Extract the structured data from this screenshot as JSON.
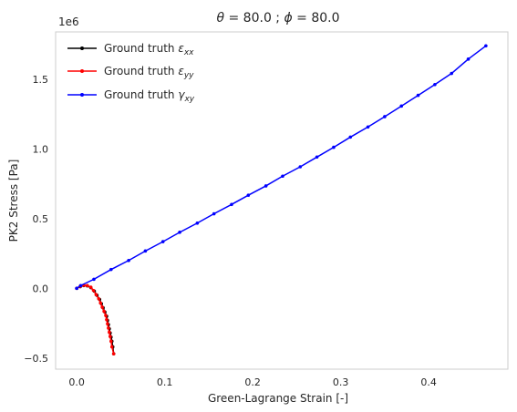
{
  "chart_data": {
    "type": "line",
    "title_parts": [
      "θ",
      " = 80.0 ; ",
      "ϕ",
      " = 80.0"
    ],
    "xlabel": "Green-Lagrange Strain [-]",
    "ylabel": "PK2 Stress [Pa]",
    "y_scale_label": "1e6",
    "xlim": [
      -0.024,
      0.49
    ],
    "ylim": [
      -0.58,
      1.84
    ],
    "x_ticks": [
      0.0,
      0.1,
      0.2,
      0.3,
      0.4
    ],
    "x_tick_labels": [
      "0.0",
      "0.1",
      "0.2",
      "0.3",
      "0.4"
    ],
    "y_ticks": [
      -0.5,
      0.0,
      0.5,
      1.0,
      1.5
    ],
    "y_tick_labels": [
      "−0.5",
      "0.0",
      "0.5",
      "1.0",
      "1.5"
    ],
    "grid": false,
    "legend_position": "top-left",
    "series": [
      {
        "name_main": "Ground truth ",
        "name_math": "ε",
        "name_sub": "xx",
        "color": "#000000",
        "x": [
          0.0,
          0.004,
          0.008,
          0.012,
          0.016,
          0.02,
          0.023,
          0.026,
          0.028,
          0.03,
          0.032,
          0.034,
          0.035,
          0.036,
          0.037,
          0.038,
          0.039,
          0.04,
          0.041,
          0.042
        ],
        "y": [
          0.0,
          0.012,
          0.02,
          0.018,
          0.005,
          -0.02,
          -0.05,
          -0.08,
          -0.11,
          -0.14,
          -0.17,
          -0.2,
          -0.23,
          -0.26,
          -0.29,
          -0.32,
          -0.35,
          -0.38,
          -0.42,
          -0.47
        ]
      },
      {
        "name_main": "Ground truth ",
        "name_math": "ε",
        "name_sub": "yy",
        "color": "#ff0000",
        "x": [
          0.0,
          0.004,
          0.008,
          0.012,
          0.016,
          0.019,
          0.022,
          0.025,
          0.027,
          0.029,
          0.031,
          0.033,
          0.034,
          0.035,
          0.036,
          0.037,
          0.038,
          0.039,
          0.04,
          0.042
        ],
        "y": [
          0.0,
          0.015,
          0.022,
          0.02,
          0.008,
          -0.015,
          -0.045,
          -0.075,
          -0.105,
          -0.135,
          -0.165,
          -0.195,
          -0.225,
          -0.255,
          -0.285,
          -0.315,
          -0.345,
          -0.38,
          -0.42,
          -0.47
        ]
      },
      {
        "name_main": "Ground truth ",
        "name_math": "γ",
        "name_sub": "xy",
        "color": "#0000ff",
        "x": [
          0.0,
          0.0045,
          0.0195,
          0.039,
          0.059,
          0.078,
          0.098,
          0.117,
          0.137,
          0.156,
          0.176,
          0.195,
          0.215,
          0.234,
          0.254,
          0.273,
          0.292,
          0.311,
          0.331,
          0.35,
          0.369,
          0.388,
          0.407,
          0.426,
          0.445,
          0.465
        ],
        "y": [
          0.0,
          0.02,
          0.065,
          0.135,
          0.2,
          0.268,
          0.335,
          0.402,
          0.468,
          0.535,
          0.602,
          0.668,
          0.735,
          0.805,
          0.872,
          0.942,
          1.012,
          1.085,
          1.158,
          1.232,
          1.308,
          1.385,
          1.462,
          1.542,
          1.645,
          1.74
        ]
      }
    ]
  }
}
